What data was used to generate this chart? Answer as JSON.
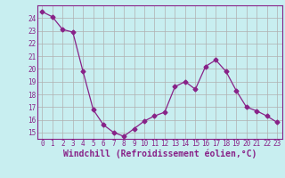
{
  "x": [
    0,
    1,
    2,
    3,
    4,
    5,
    6,
    7,
    8,
    9,
    10,
    11,
    12,
    13,
    14,
    15,
    16,
    17,
    18,
    19,
    20,
    21,
    22,
    23
  ],
  "y": [
    24.5,
    24.1,
    23.1,
    22.9,
    19.8,
    16.8,
    15.6,
    15.0,
    14.7,
    15.3,
    15.9,
    16.3,
    16.6,
    18.6,
    19.0,
    18.4,
    20.2,
    20.7,
    19.8,
    18.3,
    17.0,
    16.7,
    16.3,
    15.8
  ],
  "line_color": "#882288",
  "marker": "D",
  "marker_size": 2.5,
  "bg_color": "#c8eef0",
  "grid_color": "#b0b0b0",
  "xlabel": "Windchill (Refroidissement éolien,°C)",
  "ylim": [
    14.5,
    25.0
  ],
  "xlim": [
    -0.5,
    23.5
  ],
  "yticks": [
    15,
    16,
    17,
    18,
    19,
    20,
    21,
    22,
    23,
    24
  ],
  "xticks": [
    0,
    1,
    2,
    3,
    4,
    5,
    6,
    7,
    8,
    9,
    10,
    11,
    12,
    13,
    14,
    15,
    16,
    17,
    18,
    19,
    20,
    21,
    22,
    23
  ],
  "tick_fontsize": 5.5,
  "xlabel_fontsize": 7,
  "label_color": "#882288"
}
